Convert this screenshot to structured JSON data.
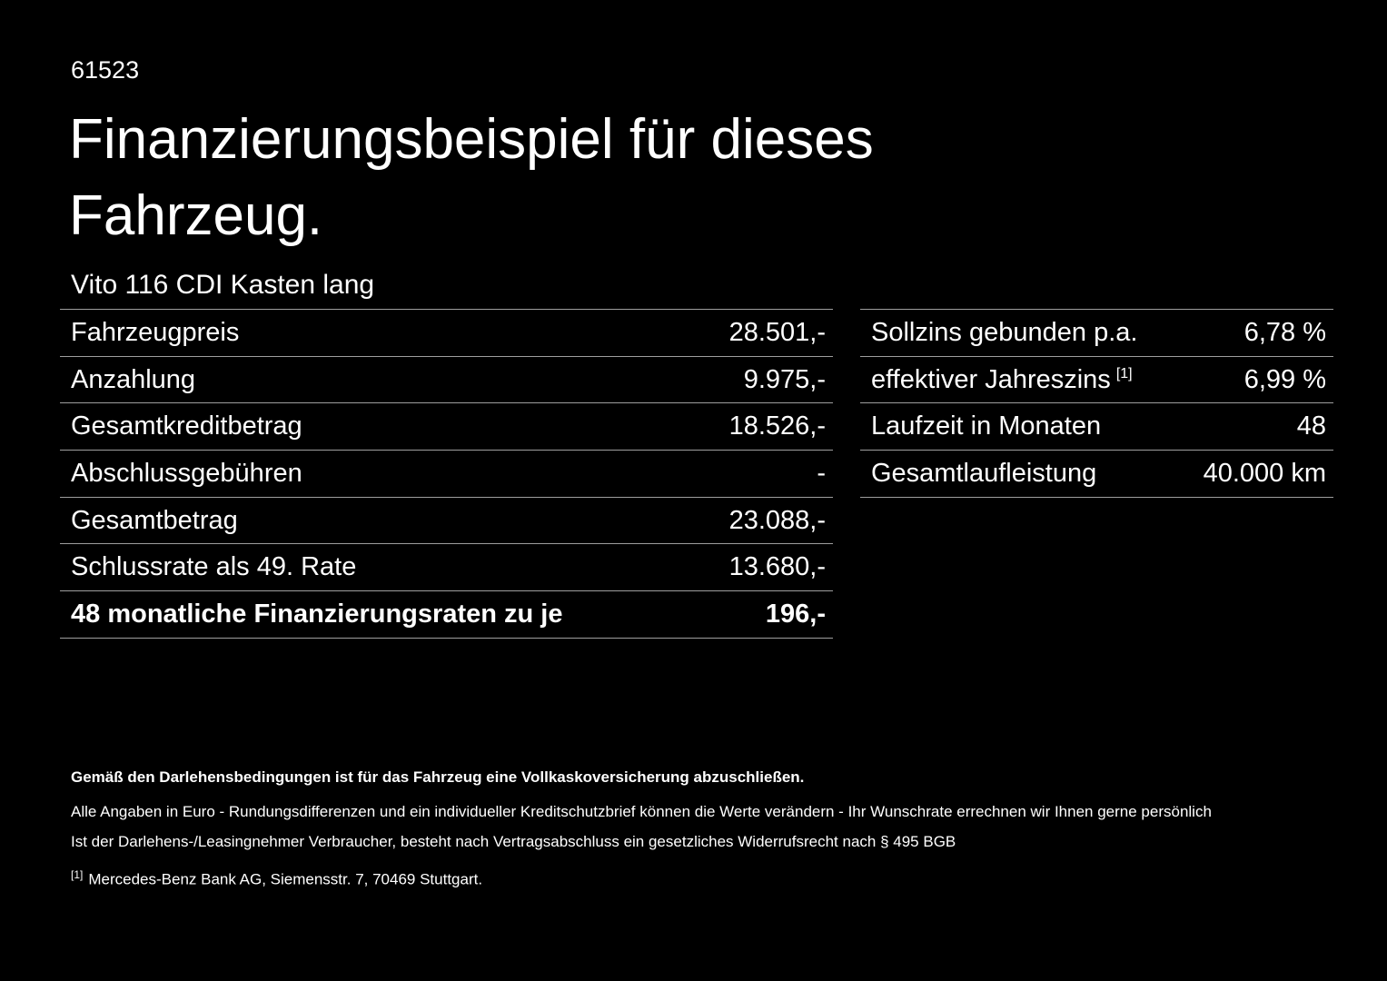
{
  "page": {
    "code": "61523",
    "title": "Finanzierungsbeispiel für dieses Fahrzeug.",
    "vehicle": "Vito 116 CDI Kasten lang"
  },
  "finance_table": {
    "rows": [
      {
        "label": "Fahrzeugpreis",
        "value": "28.501,-"
      },
      {
        "label": "Anzahlung",
        "value": "9.975,-"
      },
      {
        "label": "Gesamtkreditbetrag",
        "value": "18.526,-"
      },
      {
        "label": "Abschlussgebühren",
        "value": "-"
      },
      {
        "label": "Gesamtbetrag",
        "value": "23.088,-"
      },
      {
        "label": "Schlussrate als 49. Rate",
        "value": "13.680,-"
      },
      {
        "label": "48 monatliche Finanzierungsraten zu je",
        "value": "196,-"
      }
    ]
  },
  "conditions_table": {
    "rows": [
      {
        "label": "Sollzins gebunden p.a.",
        "sup": "",
        "value": "6,78 %"
      },
      {
        "label": "effektiver Jahreszins",
        "sup": "[1]",
        "value": "6,99 %"
      },
      {
        "label": "Laufzeit in Monaten",
        "sup": "",
        "value": "48"
      },
      {
        "label": "Gesamtlaufleistung",
        "sup": "",
        "value": "40.000 km"
      }
    ]
  },
  "footnotes": {
    "insurance_note": "Gemäß den Darlehensbedingungen ist für das Fahrzeug eine Vollkaskoversicherung abzuschließen.",
    "euro_note": "Alle Angaben in Euro - Rundungsdifferenzen und ein individueller Kreditschutzbrief können die Werte verändern - Ihr Wunschrate errechnen wir Ihnen gerne persönlich",
    "withdrawal_note": "Ist der Darlehens-/Leasingnehmer Verbraucher, besteht nach Vertragsabschluss ein gesetzliches Widerrufsrecht nach § 495 BGB",
    "source_marker": "[1]",
    "source_note": "Mercedes-Benz Bank AG, Siemensstr. 7, 70469 Stuttgart."
  }
}
